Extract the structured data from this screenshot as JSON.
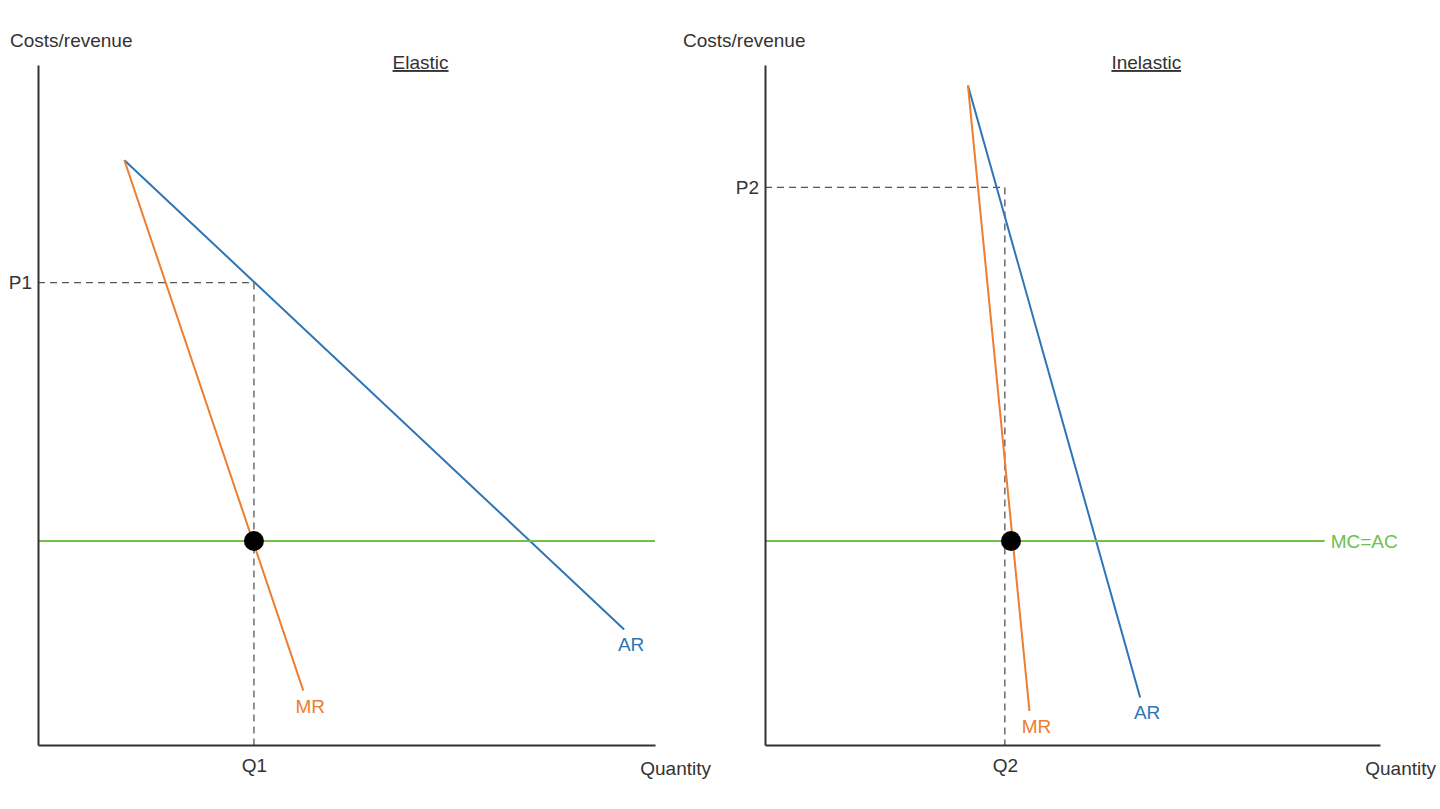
{
  "chart_data": [
    {
      "type": "line",
      "title": "Elastic",
      "x_label": "Quantity",
      "y_label": "Costs/revenue",
      "xlim": [
        0,
        100
      ],
      "ylim": [
        0,
        100
      ],
      "xticks": [
        {
          "value": 35,
          "label": "Q1"
        }
      ],
      "yticks": [
        {
          "value": 68,
          "label": "P1"
        }
      ],
      "grid": false,
      "series": [
        {
          "name": "AR",
          "color": "#2e75b6",
          "x": [
            14,
            95
          ],
          "values": [
            86,
            17
          ]
        },
        {
          "name": "MR",
          "color": "#ed7d31",
          "x": [
            14,
            43
          ],
          "values": [
            86,
            8
          ]
        },
        {
          "color": "#70c04a",
          "x": [
            0,
            100
          ],
          "values": [
            30,
            30
          ]
        },
        {
          "type": "scatter",
          "marker": "circle",
          "color": "#000000",
          "x": [
            35
          ],
          "values": [
            30
          ]
        }
      ]
    },
    {
      "type": "line",
      "title": "Inelastic",
      "x_label": "Quantity",
      "y_label": "Costs/revenue",
      "xlim": [
        0,
        100
      ],
      "ylim": [
        0,
        100
      ],
      "xticks": [
        {
          "value": 39,
          "label": "Q2"
        }
      ],
      "yticks": [
        {
          "value": 82,
          "label": "P2"
        }
      ],
      "grid": false,
      "series": [
        {
          "name": "AR",
          "color": "#2e75b6",
          "x": [
            33,
            61
          ],
          "values": [
            97,
            7
          ]
        },
        {
          "name": "MR",
          "color": "#ed7d31",
          "x": [
            33,
            43
          ],
          "values": [
            97,
            5
          ]
        },
        {
          "name": "MC=AC",
          "color": "#70c04a",
          "x": [
            0,
            91
          ],
          "values": [
            30,
            30
          ]
        },
        {
          "type": "scatter",
          "marker": "circle",
          "color": "#000000",
          "x": [
            40
          ],
          "values": [
            30
          ]
        }
      ]
    }
  ]
}
